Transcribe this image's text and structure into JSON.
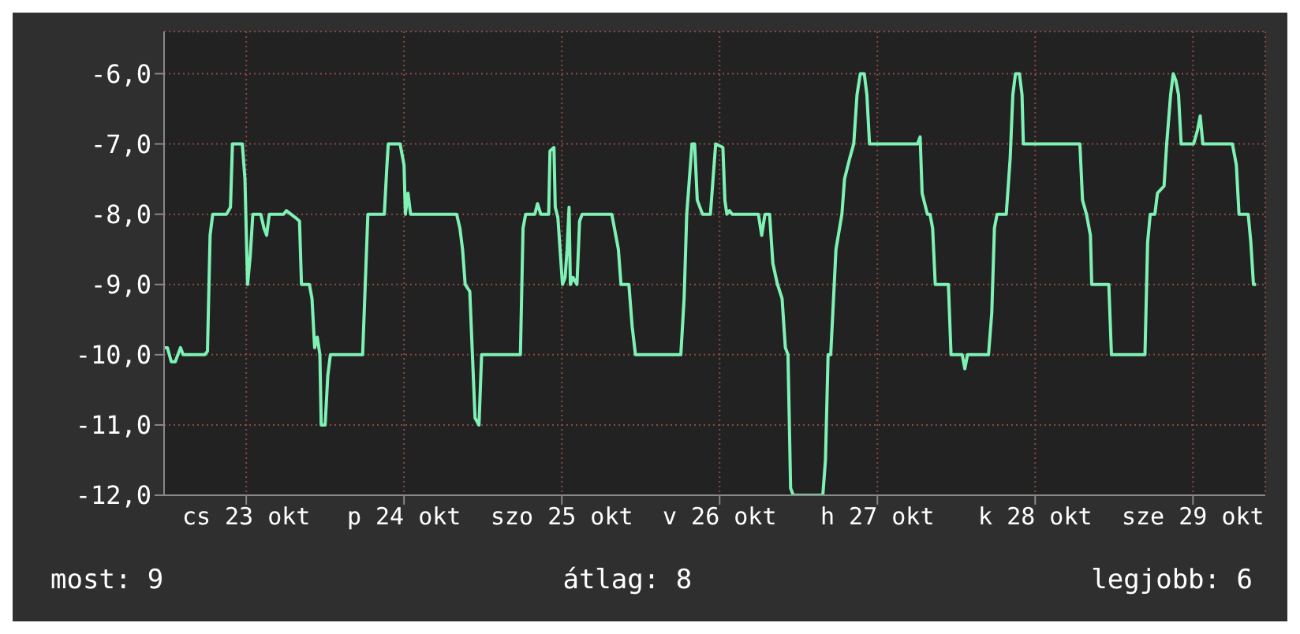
{
  "chart_data": {
    "type": "line",
    "x": [
      "--10-22T23:36",
      "--10-23T00:00",
      "--10-23T00:36",
      "--10-23T01:12",
      "--10-23T02:00",
      "--10-23T02:24",
      "--10-23T05:42",
      "--10-23T06:06",
      "--10-23T06:30",
      "--10-23T06:54",
      "--10-23T09:00",
      "--10-23T09:36",
      "--10-23T09:54",
      "--10-23T11:24",
      "--10-23T11:48",
      "--10-23T12:12",
      "--10-23T12:36",
      "--10-23T13:00",
      "--10-23T14:12",
      "--10-23T14:42",
      "--10-23T15:06",
      "--10-23T15:30",
      "--10-23T17:42",
      "--10-23T18:06",
      "--10-23T19:30",
      "--10-23T20:06",
      "--10-23T20:24",
      "--10-23T21:36",
      "--10-23T22:00",
      "--10-23T22:24",
      "--10-23T22:48",
      "--10-23T23:12",
      "--10-23T23:24",
      "--10-24T00:00",
      "--10-24T00:24",
      "--10-24T00:48",
      "--10-24T05:42",
      "--10-24T06:06",
      "--10-24T06:30",
      "--10-24T09:00",
      "--10-24T09:24",
      "--10-24T09:36",
      "--10-24T11:24",
      "--10-24T12:00",
      "--10-24T12:12",
      "--10-24T12:36",
      "--10-24T13:00",
      "--10-24T20:00",
      "--10-24T20:30",
      "--10-24T20:54",
      "--10-24T21:18",
      "--10-24T22:00",
      "--10-24T22:24",
      "--10-24T22:48",
      "--10-24T23:24",
      "--10-24T23:48",
      "--10-25T05:42",
      "--10-25T06:06",
      "--10-25T06:30",
      "--10-25T07:54",
      "--10-25T08:18",
      "--10-25T08:48",
      "--10-25T10:00",
      "--10-25T10:12",
      "--10-25T10:48",
      "--10-25T11:00",
      "--10-25T11:24",
      "--10-25T12:06",
      "--10-25T12:30",
      "--10-25T12:48",
      "--10-25T13:06",
      "--10-25T13:18",
      "--10-25T13:42",
      "--10-25T14:18",
      "--10-25T14:42",
      "--10-25T15:06",
      "--10-25T19:36",
      "--10-25T20:12",
      "--10-25T20:36",
      "--10-25T21:00",
      "--10-25T22:12",
      "--10-25T22:42",
      "--10-25T23:12",
      "--10-26T06:06",
      "--10-26T06:36",
      "--10-26T07:00",
      "--10-26T07:48",
      "--10-26T08:12",
      "--10-26T08:36",
      "--10-26T09:24",
      "--10-26T10:36",
      "--10-26T11:00",
      "--10-26T11:24",
      "--10-26T12:30",
      "--10-26T12:48",
      "--10-26T13:06",
      "--10-26T13:30",
      "--10-26T13:54",
      "--10-26T17:54",
      "--10-26T18:24",
      "--10-26T18:54",
      "--10-26T19:36",
      "--10-26T20:06",
      "--10-26T20:48",
      "--10-26T21:30",
      "--10-26T22:00",
      "--10-26T22:24",
      "--10-26T22:48",
      "--10-26T23:12",
      "--10-27T03:42",
      "--10-27T04:06",
      "--10-27T04:30",
      "--10-27T04:54",
      "--10-27T05:42",
      "--10-27T06:36",
      "--10-27T07:00",
      "--10-27T07:48",
      "--10-27T08:24",
      "--10-27T08:54",
      "--10-27T09:24",
      "--10-27T10:00",
      "--10-27T10:24",
      "--10-27T10:48",
      "--10-27T18:06",
      "--10-27T18:30",
      "--10-27T18:48",
      "--10-27T19:36",
      "--10-27T20:00",
      "--10-27T20:24",
      "--10-27T20:48",
      "--10-27T22:48",
      "--10-27T23:12",
      "--10-28T00:54",
      "--10-28T01:18",
      "--10-28T01:42",
      "--10-28T04:54",
      "--10-28T05:24",
      "--10-28T05:48",
      "--10-28T06:12",
      "--10-28T07:36",
      "--10-28T08:12",
      "--10-28T08:36",
      "--10-28T09:00",
      "--10-28T09:36",
      "--10-28T10:00",
      "--10-28T10:12",
      "--10-28T18:48",
      "--10-28T19:12",
      "--10-28T19:48",
      "--10-28T20:24",
      "--10-28T20:36",
      "--10-28T23:12",
      "--10-28T23:36",
      "--10-29T04:42",
      "--10-29T05:06",
      "--10-29T05:30",
      "--10-29T06:12",
      "--10-29T06:36",
      "--10-29T07:36",
      "--10-29T08:00",
      "--10-29T08:36",
      "--10-29T09:00",
      "--10-29T09:24",
      "--10-29T09:48",
      "--10-29T10:12",
      "--10-29T12:06",
      "--10-29T12:42",
      "--10-29T13:06",
      "--10-29T13:30",
      "--10-29T18:00",
      "--10-29T18:36",
      "--10-29T19:00",
      "--10-29T20:24",
      "--10-29T20:48",
      "--10-29T21:12",
      "--10-29T21:36"
    ],
    "series": [
      {
        "color": "#7ef2b4",
        "values": [
          -9.9,
          -9.9,
          -10.1,
          -10.1,
          -9.9,
          -10.0,
          -10.0,
          -9.95,
          -8.3,
          -8.0,
          -8.0,
          -7.9,
          -7.0,
          -7.0,
          -7.5,
          -9.0,
          -8.6,
          -8.0,
          -8.0,
          -8.2,
          -8.3,
          -8.0,
          -8.0,
          -7.95,
          -8.05,
          -8.1,
          -9.0,
          -9.0,
          -9.2,
          -9.9,
          -9.75,
          -10.0,
          -11.0,
          -11.0,
          -10.3,
          -10.0,
          -10.0,
          -9.0,
          -8.0,
          -8.0,
          -7.3,
          -7.0,
          -7.0,
          -7.3,
          -8.0,
          -7.7,
          -8.0,
          -8.0,
          -8.2,
          -8.5,
          -9.0,
          -9.1,
          -10.0,
          -10.9,
          -11.0,
          -10.0,
          -10.0,
          -8.2,
          -8.0,
          -8.0,
          -7.85,
          -8.0,
          -8.0,
          -7.1,
          -7.05,
          -7.9,
          -8.05,
          -9.0,
          -8.9,
          -8.5,
          -7.9,
          -9.0,
          -8.9,
          -9.0,
          -8.1,
          -8.0,
          -8.0,
          -8.3,
          -8.5,
          -9.0,
          -9.0,
          -9.6,
          -10.0,
          -10.0,
          -9.2,
          -8.0,
          -7.0,
          -7.0,
          -7.8,
          -8.0,
          -8.0,
          -7.5,
          -7.0,
          -7.05,
          -7.8,
          -8.0,
          -7.95,
          -8.0,
          -8.0,
          -8.3,
          -8.0,
          -8.0,
          -8.7,
          -9.0,
          -9.2,
          -9.9,
          -10.0,
          -11.9,
          -12.0,
          -12.0,
          -11.5,
          -10.0,
          -10.0,
          -8.5,
          -8.0,
          -7.5,
          -7.2,
          -7.0,
          -6.3,
          -6.0,
          -6.0,
          -6.3,
          -7.0,
          -7.0,
          -6.9,
          -7.7,
          -8.0,
          -8.0,
          -8.2,
          -9.0,
          -9.0,
          -10.0,
          -10.0,
          -10.2,
          -10.0,
          -10.0,
          -9.4,
          -8.2,
          -8.0,
          -8.0,
          -7.2,
          -6.3,
          -6.0,
          -6.0,
          -6.3,
          -7.0,
          -7.0,
          -7.8,
          -8.0,
          -8.3,
          -9.0,
          -9.0,
          -10.0,
          -10.0,
          -8.4,
          -8.0,
          -8.0,
          -7.7,
          -7.6,
          -7.0,
          -6.3,
          -6.0,
          -6.1,
          -6.3,
          -7.0,
          -7.0,
          -6.8,
          -6.6,
          -7.0,
          -7.0,
          -7.3,
          -8.0,
          -8.0,
          -8.4,
          -9.0,
          -9.0
        ]
      }
    ],
    "xlim": [
      "--10-22T23:30",
      "--10-29T23:00"
    ],
    "xticks": [
      {
        "value": "--10-23T12:00",
        "label": "cs 23 okt"
      },
      {
        "value": "--10-24T12:00",
        "label": "p 24 okt"
      },
      {
        "value": "--10-25T12:00",
        "label": "szo 25 okt"
      },
      {
        "value": "--10-26T12:00",
        "label": "v 26 okt"
      },
      {
        "value": "--10-27T12:00",
        "label": "h 27 okt"
      },
      {
        "value": "--10-28T12:00",
        "label": "k 28 okt"
      },
      {
        "value": "--10-29T12:00",
        "label": "sze 29 okt"
      }
    ],
    "ylim": [
      -12,
      -5.4
    ],
    "yticks": [
      {
        "value": -12,
        "label": "-12,0"
      },
      {
        "value": -11,
        "label": "-11,0"
      },
      {
        "value": -10,
        "label": "-10,0"
      },
      {
        "value": -9,
        "label": "-9,0"
      },
      {
        "value": -8,
        "label": "-8,0"
      },
      {
        "value": -7,
        "label": "-7,0"
      },
      {
        "value": -6,
        "label": "-6,0"
      }
    ],
    "grid": true,
    "annotations": [
      "most: 9",
      "átlag: 8",
      "legjobb: 6"
    ]
  }
}
